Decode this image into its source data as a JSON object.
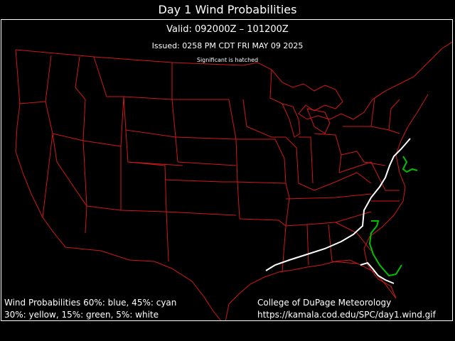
{
  "title": "Day 1 Wind Probabilities",
  "valid": "Valid: 092000Z – 101200Z",
  "issued": "Issued: 0258 PM CDT FRI MAY 09 2025",
  "significant_note": "Significant is hatched",
  "legend": {
    "line1": "Wind Probabilities 60%: blue, 45%: cyan",
    "line2": "30%: yellow, 15%: green, 5%: white"
  },
  "credit": {
    "org": "College of DuPage Meteorology",
    "url": "https://kamala.cod.edu/SPC/day1.wind.gif"
  },
  "colors": {
    "background": "#000000",
    "boundaries": "#d01818",
    "prob_5": "#ffffff",
    "prob_15": "#00c000"
  },
  "contours": [
    {
      "probability": "5%",
      "color": "white",
      "segments": 2
    },
    {
      "probability": "15%",
      "color": "green",
      "segments": 2
    }
  ]
}
